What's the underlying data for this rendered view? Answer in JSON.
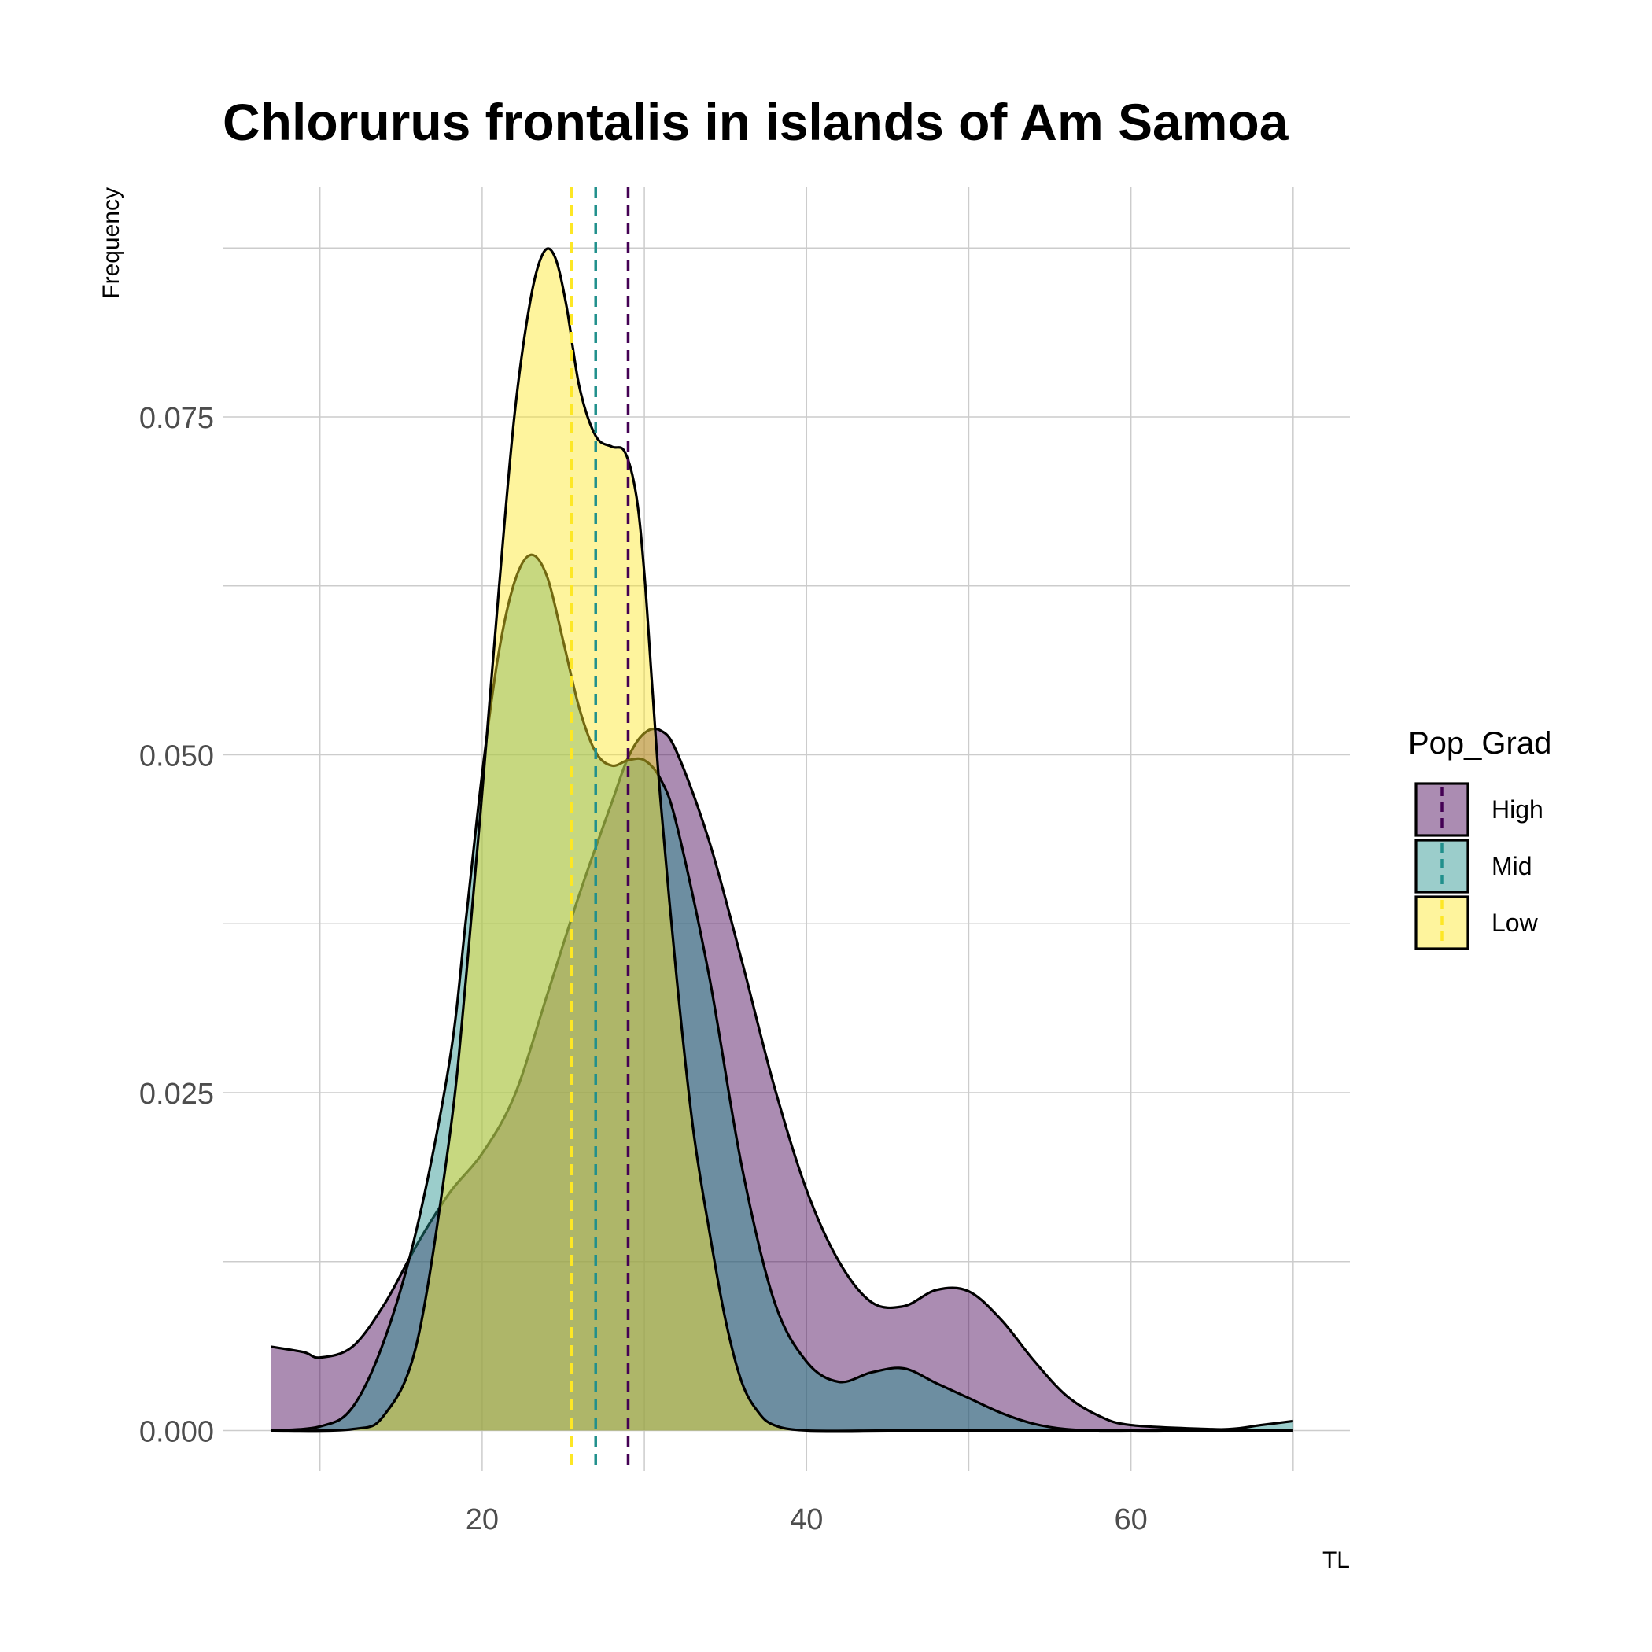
{
  "chart_data": {
    "type": "area",
    "title": "Chlorurus frontalis in islands of Am Samoa",
    "xlabel": "TL",
    "ylabel": "Frequency",
    "xlim": [
      4,
      73.5
    ],
    "ylim": [
      -0.003,
      0.092
    ],
    "x_ticks": [
      20,
      40,
      60
    ],
    "y_ticks": [
      0.0,
      0.025,
      0.05,
      0.075
    ],
    "y_tick_labels": [
      "0.000",
      "0.025",
      "0.050",
      "0.075"
    ],
    "grid": true,
    "legend": {
      "title": "Pop_Grad",
      "position": "right",
      "entries": [
        {
          "name": "High",
          "fill": "#440154",
          "line": "#440154"
        },
        {
          "name": "Mid",
          "fill": "#21908C",
          "line": "#21908C"
        },
        {
          "name": "Low",
          "fill": "#FDE725",
          "line": "#FDE725"
        }
      ]
    },
    "series": [
      {
        "name": "High",
        "color": "#440154",
        "mean": 29,
        "x": [
          7,
          9,
          10,
          12,
          14,
          16,
          18,
          20,
          22,
          24,
          26,
          28,
          29,
          30,
          31,
          32,
          34,
          36,
          38,
          40,
          42,
          44,
          46,
          48,
          50,
          52,
          54,
          56,
          58,
          60,
          65,
          70
        ],
        "y": [
          0.0062,
          0.0058,
          0.0054,
          0.0062,
          0.0094,
          0.0138,
          0.0176,
          0.0205,
          0.0248,
          0.0322,
          0.0397,
          0.0465,
          0.0498,
          0.0516,
          0.0518,
          0.0502,
          0.0436,
          0.0348,
          0.0255,
          0.0178,
          0.0125,
          0.0095,
          0.0092,
          0.0104,
          0.0103,
          0.0082,
          0.0052,
          0.0026,
          0.0011,
          0.0004,
          0.0001,
          0.0
        ]
      },
      {
        "name": "Mid",
        "color": "#21908C",
        "mean": 27,
        "x": [
          7,
          10,
          12,
          14,
          16,
          18,
          19,
          20,
          21,
          22,
          23,
          24,
          25,
          26,
          27,
          28,
          29,
          30,
          31,
          32,
          34,
          36,
          38,
          40,
          42,
          44,
          46,
          48,
          50,
          52,
          54,
          56,
          58,
          60,
          62,
          66,
          68,
          70
        ],
        "y": [
          0.0,
          0.0003,
          0.0017,
          0.0068,
          0.0151,
          0.0274,
          0.0378,
          0.0486,
          0.0574,
          0.0628,
          0.0648,
          0.0632,
          0.0584,
          0.0534,
          0.0502,
          0.0492,
          0.0496,
          0.0496,
          0.0482,
          0.0448,
          0.0336,
          0.0196,
          0.0096,
          0.0051,
          0.0036,
          0.0043,
          0.0046,
          0.0035,
          0.0024,
          0.0013,
          0.0005,
          0.0001,
          0.0,
          0.0,
          0.0,
          0.0001,
          0.0004,
          0.0007
        ]
      },
      {
        "name": "Low",
        "color": "#FDE725",
        "mean": 25.5,
        "x": [
          7,
          12,
          14,
          16,
          18,
          19,
          20,
          21,
          22,
          23,
          23.8,
          24.5,
          25.2,
          26,
          27,
          28,
          28.8,
          29.5,
          30,
          30.5,
          31,
          32,
          33,
          34,
          35,
          36,
          37,
          38,
          40,
          45,
          50,
          60,
          70
        ],
        "y": [
          0.0,
          0.0001,
          0.0012,
          0.0066,
          0.0218,
          0.0334,
          0.0472,
          0.0618,
          0.0752,
          0.0838,
          0.0872,
          0.0868,
          0.0832,
          0.0772,
          0.0736,
          0.0728,
          0.0724,
          0.0692,
          0.0634,
          0.0548,
          0.0466,
          0.0334,
          0.0224,
          0.0148,
          0.0082,
          0.0036,
          0.0014,
          0.0004,
          0.0,
          0.0,
          0.0,
          0.0,
          0.0
        ]
      }
    ]
  }
}
